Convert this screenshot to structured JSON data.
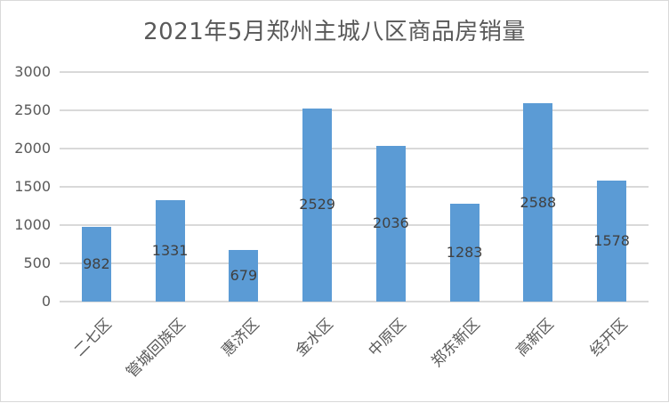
{
  "chart_data": {
    "type": "bar",
    "title": "2021年5月郑州主城八区商品房销量",
    "xlabel": "",
    "ylabel": "",
    "categories": [
      "二七区",
      "管城回族区",
      "惠济区",
      "金水区",
      "中原区",
      "郑东新区",
      "高新区",
      "经开区"
    ],
    "values": [
      982,
      1331,
      679,
      2529,
      2036,
      1283,
      2588,
      1578
    ],
    "ylim": [
      0,
      3000
    ],
    "yticks": [
      "0",
      "500",
      "1000",
      "1500",
      "2000",
      "2500",
      "3000"
    ],
    "grid": true,
    "legend": "none",
    "data_labels": [
      "982",
      "1331",
      "679",
      "2529",
      "2036",
      "1283",
      "2588",
      "1578"
    ],
    "bar_color": "#5b9bd5"
  }
}
